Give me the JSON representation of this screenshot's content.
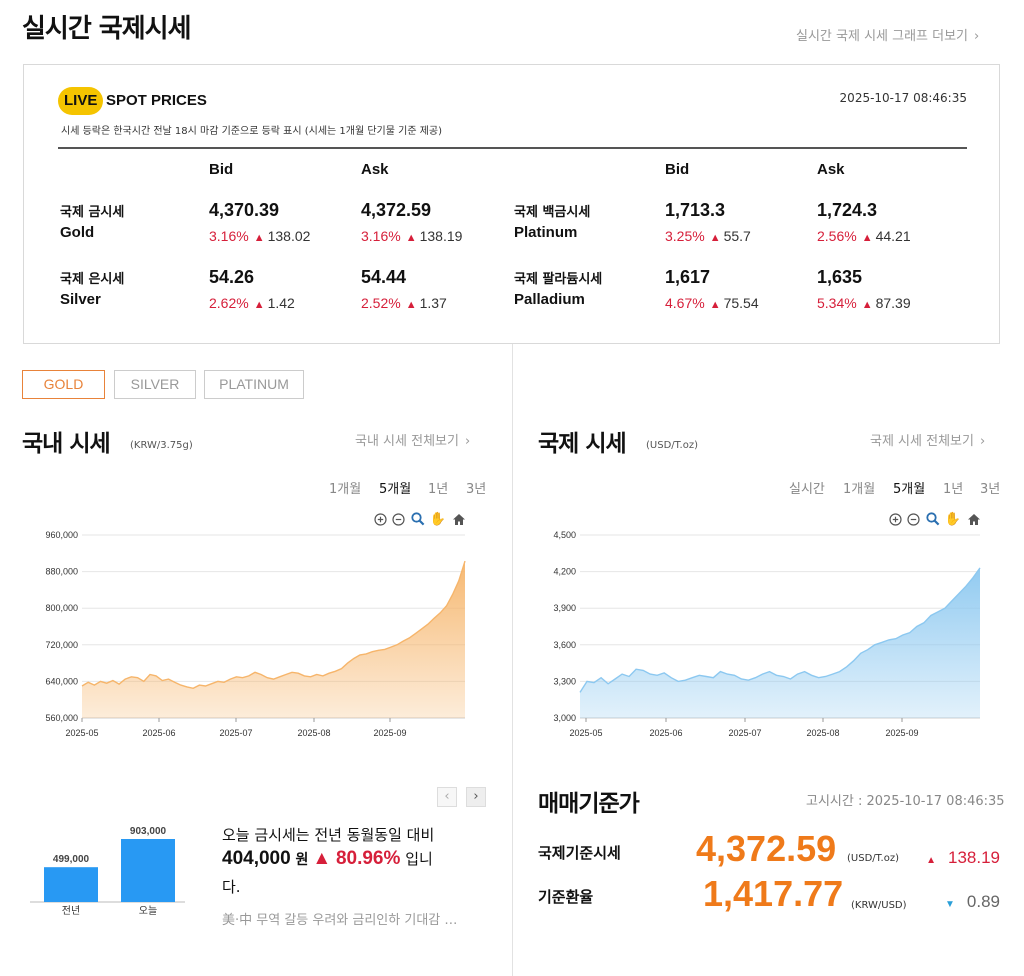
{
  "page": {
    "title": "실시간 국제시세",
    "more_link": "실시간 국제 시세 그래프 더보기"
  },
  "spot": {
    "live_badge": "LIVE",
    "title": "SPOT PRICES",
    "timestamp": "2025-10-17 08:46:35",
    "note": "시세 등락은 한국시간 전날 18시 마감 기준으로 등락 표시 (시세는 1개월 단기물 기준 제공)",
    "col_bid": "Bid",
    "col_ask": "Ask",
    "metals": [
      {
        "name_ko": "국제 금시세",
        "name_en": "Gold",
        "bid": "4,370.39",
        "bid_pct": "3.16%",
        "bid_chg": "138.02",
        "ask": "4,372.59",
        "ask_pct": "3.16%",
        "ask_chg": "138.19"
      },
      {
        "name_ko": "국제 은시세",
        "name_en": "Silver",
        "bid": "54.26",
        "bid_pct": "2.62%",
        "bid_chg": "1.42",
        "ask": "54.44",
        "ask_pct": "2.52%",
        "ask_chg": "1.37"
      },
      {
        "name_ko": "국제 백금시세",
        "name_en": "Platinum",
        "bid": "1,713.3",
        "bid_pct": "3.25%",
        "bid_chg": "55.7",
        "ask": "1,724.3",
        "ask_pct": "2.56%",
        "ask_chg": "44.21"
      },
      {
        "name_ko": "국제 팔라듐시세",
        "name_en": "Palladium",
        "bid": "1,617",
        "bid_pct": "4.67%",
        "bid_chg": "75.54",
        "ask": "1,635",
        "ask_pct": "5.34%",
        "ask_chg": "87.39"
      }
    ]
  },
  "metal_tabs": [
    "GOLD",
    "SILVER",
    "PLATINUM"
  ],
  "domestic": {
    "title": "국내 시세",
    "unit": "(KRW/3.75g)",
    "more_link": "국내 시세 전체보기",
    "periods": [
      "1개월",
      "5개월",
      "1년",
      "3년"
    ],
    "active_period": "5개월"
  },
  "international": {
    "title": "국제 시세",
    "unit": "(USD/T.oz)",
    "more_link": "국제 시세 전체보기",
    "periods": [
      "실시간",
      "1개월",
      "5개월",
      "1년",
      "3년"
    ],
    "active_period": "5개월"
  },
  "toolbar_icons": [
    "zoom-in-icon",
    "zoom-out-icon",
    "magnifier-icon",
    "hand-pan-icon",
    "home-icon"
  ],
  "chart_data": [
    {
      "type": "area",
      "x_tick_labels": [
        "2025-05",
        "2025-06",
        "2025-07",
        "2025-08",
        "2025-09"
      ],
      "y_tick_labels": [
        "960,000",
        "880,000",
        "800,000",
        "720,000",
        "640,000",
        "560,000"
      ],
      "ylim": [
        560000,
        960000
      ],
      "grid": true,
      "color": "#f6b56b",
      "series": [
        {
          "values": [
            630000,
            638000,
            632000,
            640000,
            636000,
            642000,
            634000,
            645000,
            650000,
            648000,
            640000,
            655000,
            652000,
            642000,
            645000,
            638000,
            632000,
            628000,
            625000,
            632000,
            630000,
            635000,
            640000,
            638000,
            645000,
            650000,
            648000,
            652000,
            660000,
            655000,
            648000,
            645000,
            650000,
            655000,
            660000,
            658000,
            652000,
            650000,
            655000,
            652000,
            658000,
            662000,
            668000,
            680000,
            690000,
            698000,
            700000,
            705000,
            708000,
            710000,
            715000,
            720000,
            728000,
            735000,
            745000,
            755000,
            765000,
            778000,
            790000,
            805000,
            830000,
            860000,
            903000
          ]
        }
      ]
    },
    {
      "type": "area",
      "x_tick_labels": [
        "2025-05",
        "2025-06",
        "2025-07",
        "2025-08",
        "2025-09"
      ],
      "y_tick_labels": [
        "4,500",
        "4,200",
        "3,900",
        "3,600",
        "3,300",
        "3,000"
      ],
      "ylim": [
        3000,
        4500
      ],
      "grid": true,
      "color": "#8cc8f0",
      "series": [
        {
          "values": [
            3210,
            3300,
            3290,
            3330,
            3280,
            3320,
            3360,
            3340,
            3400,
            3390,
            3360,
            3350,
            3370,
            3330,
            3300,
            3310,
            3330,
            3350,
            3340,
            3330,
            3380,
            3360,
            3350,
            3320,
            3310,
            3330,
            3360,
            3380,
            3350,
            3340,
            3320,
            3360,
            3380,
            3350,
            3330,
            3340,
            3360,
            3380,
            3420,
            3470,
            3530,
            3560,
            3600,
            3620,
            3640,
            3650,
            3680,
            3700,
            3750,
            3780,
            3840,
            3870,
            3900,
            3960,
            4020,
            4080,
            4150,
            4230
          ]
        }
      ]
    },
    {
      "type": "bar",
      "categories": [
        "전년",
        "오늘"
      ],
      "values": [
        499000,
        903000
      ],
      "value_labels": [
        "499,000",
        "903,000"
      ],
      "color": "#2899f3"
    }
  ],
  "summary": {
    "line1": "오늘 금시세는 전년 동월동일 대비",
    "diff": "404,000",
    "won": "원",
    "pct": "80.96%",
    "suffix1": "입니",
    "suffix2": "다.",
    "news": "美·中 무역 갈등 우려와 금리인하 기대감 …"
  },
  "standard": {
    "title": "매매기준가",
    "time_label": "고시시간 : 2025-10-17 08:46:35",
    "intl_label": "국제기준시세",
    "intl_value": "4,372.59",
    "intl_unit": "(USD/T.oz)",
    "intl_chg": "138.19",
    "intl_dir": "up",
    "fx_label": "기준환율",
    "fx_value": "1,417.77",
    "fx_unit": "(KRW/USD)",
    "fx_chg": "0.89",
    "fx_dir": "down"
  }
}
